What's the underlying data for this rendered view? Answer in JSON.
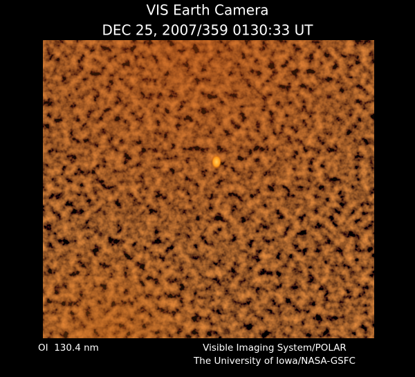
{
  "header": {
    "title": "VIS Earth Camera",
    "timestamp": "DEC 25, 2007/359 0130:33 UT"
  },
  "footer": {
    "wavelength": "OI  130.4 nm",
    "instrument": "Visible Imaging System/POLAR",
    "credit": "The University of Iowa/NASA-GSFC"
  }
}
